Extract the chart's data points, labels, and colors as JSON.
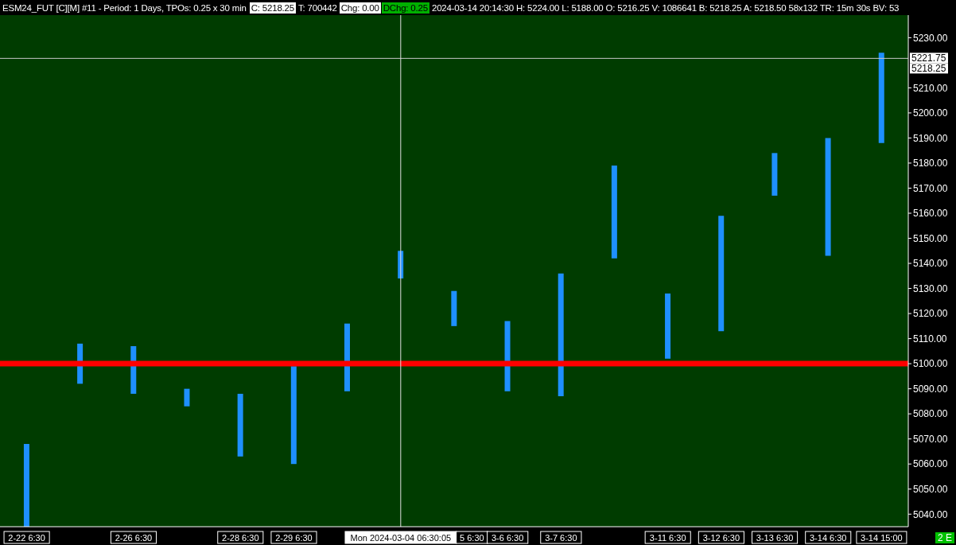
{
  "chart_data": {
    "type": "bar",
    "title": "ESM24_FUT [C][M] #11 - Period: 1 Days, TPOs: 0.25 x 30 min",
    "annotations": [
      "C: 5218.25",
      "T: 700442",
      "Chg: 0.00",
      "DChg: 0.25",
      "2024-03-14 20:14:30 H: 5224.00 L: 5188.00 O: 5216.25 V: 1086641 B: 5218.25 A: 5218.50 58x132 TR: 15m 30s BV: 53",
      "5218.25",
      "2 E"
    ],
    "categories": [
      "2-22 6:30",
      null,
      "2-26 6:30",
      null,
      "2-28 6:30",
      "2-29 6:30",
      null,
      "Mon 2024-03-04 06:30:05",
      "5 6:30",
      "3-6 6:30",
      "3-7 6:30",
      null,
      "3-11 6:30",
      "3-12 6:30",
      "3-13 6:30",
      "3-14 6:30",
      "3-14 15:00"
    ],
    "ref_lines": [
      {
        "axis": "y",
        "value": 5100,
        "color": "#ff0000"
      },
      {
        "axis": "y",
        "value": 5221.75,
        "label": "5221.75",
        "color": "#c8c8c8"
      },
      {
        "axis": "x",
        "value": "Mon 2024-03-04 06:30:05",
        "color": "#e0e0e0"
      }
    ],
    "base": [
      5035,
      5092,
      5088,
      5083,
      5063,
      5060,
      5089,
      5134,
      5115,
      5089,
      5087,
      5142,
      5102,
      5113,
      5167,
      5143,
      5188
    ],
    "values": [
      33,
      16,
      19,
      7,
      25,
      39,
      27,
      11,
      14,
      28,
      49,
      37,
      26,
      46,
      17,
      47,
      36
    ],
    "color": "#1e90ff",
    "ylim": [
      5035,
      5239
    ],
    "yticks": [
      {
        "value": 5040,
        "label": "5040.00"
      },
      {
        "value": 5050,
        "label": "5050.00"
      },
      {
        "value": 5060,
        "label": "5060.00"
      },
      {
        "value": 5070,
        "label": "5070.00"
      },
      {
        "value": 5080,
        "label": "5080.00"
      },
      {
        "value": 5090,
        "label": "5090.00"
      },
      {
        "value": 5100,
        "label": "5100.00"
      },
      {
        "value": 5110,
        "label": "5110.00"
      },
      {
        "value": 5120,
        "label": "5120.00"
      },
      {
        "value": 5130,
        "label": "5130.00"
      },
      {
        "value": 5140,
        "label": "5140.00"
      },
      {
        "value": 5150,
        "label": "5150.00"
      },
      {
        "value": 5160,
        "label": "5160.00"
      },
      {
        "value": 5170,
        "label": "5170.00"
      },
      {
        "value": 5180,
        "label": "5180.00"
      },
      {
        "value": 5190,
        "label": "5190.00"
      },
      {
        "value": 5200,
        "label": "5200.00"
      },
      {
        "value": 5210,
        "label": "5210.00"
      },
      {
        "value": 5230,
        "label": "5230.00"
      }
    ],
    "tick_labels": true
  }
}
